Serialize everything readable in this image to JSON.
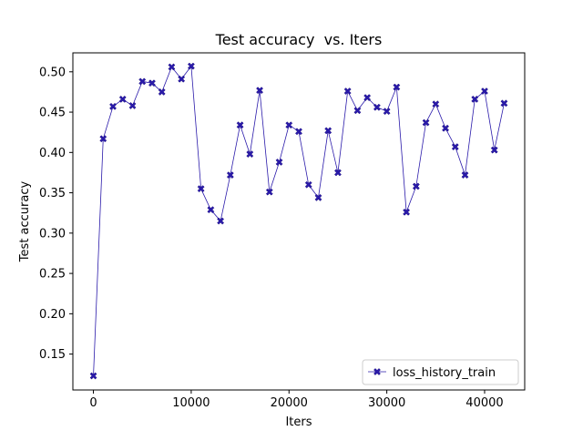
{
  "chart_data": {
    "type": "line",
    "title": "Test accuracy  vs. Iters",
    "xlabel": "Iters",
    "ylabel": "Test accuracy",
    "xlim": [
      -2100,
      44100
    ],
    "ylim": [
      0.1055,
      0.5235
    ],
    "grid": false,
    "legend_position": "lower-right",
    "x_ticks": [
      0,
      10000,
      20000,
      30000,
      40000
    ],
    "x_tick_labels": [
      "0",
      "10000",
      "20000",
      "30000",
      "40000"
    ],
    "y_ticks": [
      0.15,
      0.2,
      0.25,
      0.3,
      0.35,
      0.4,
      0.45,
      0.5
    ],
    "y_tick_labels": [
      "0.15",
      "0.20",
      "0.25",
      "0.30",
      "0.35",
      "0.40",
      "0.45",
      "0.50"
    ],
    "series": [
      {
        "name": "loss_history_train",
        "color": "#2a1aaa",
        "marker": "X",
        "x": [
          0,
          1000,
          2000,
          3000,
          4000,
          5000,
          6000,
          7000,
          8000,
          9000,
          10000,
          11000,
          12000,
          13000,
          14000,
          15000,
          16000,
          17000,
          18000,
          19000,
          20000,
          21000,
          22000,
          23000,
          24000,
          25000,
          26000,
          27000,
          28000,
          29000,
          30000,
          31000,
          32000,
          33000,
          34000,
          35000,
          36000,
          37000,
          38000,
          39000,
          40000,
          41000,
          42000
        ],
        "y": [
          0.123,
          0.417,
          0.457,
          0.466,
          0.458,
          0.488,
          0.486,
          0.475,
          0.506,
          0.491,
          0.507,
          0.355,
          0.329,
          0.315,
          0.372,
          0.434,
          0.398,
          0.477,
          0.351,
          0.388,
          0.434,
          0.426,
          0.36,
          0.344,
          0.427,
          0.375,
          0.476,
          0.452,
          0.468,
          0.456,
          0.451,
          0.481,
          0.326,
          0.358,
          0.437,
          0.46,
          0.43,
          0.407,
          0.372,
          0.466,
          0.476,
          0.403,
          0.461
        ]
      }
    ]
  }
}
